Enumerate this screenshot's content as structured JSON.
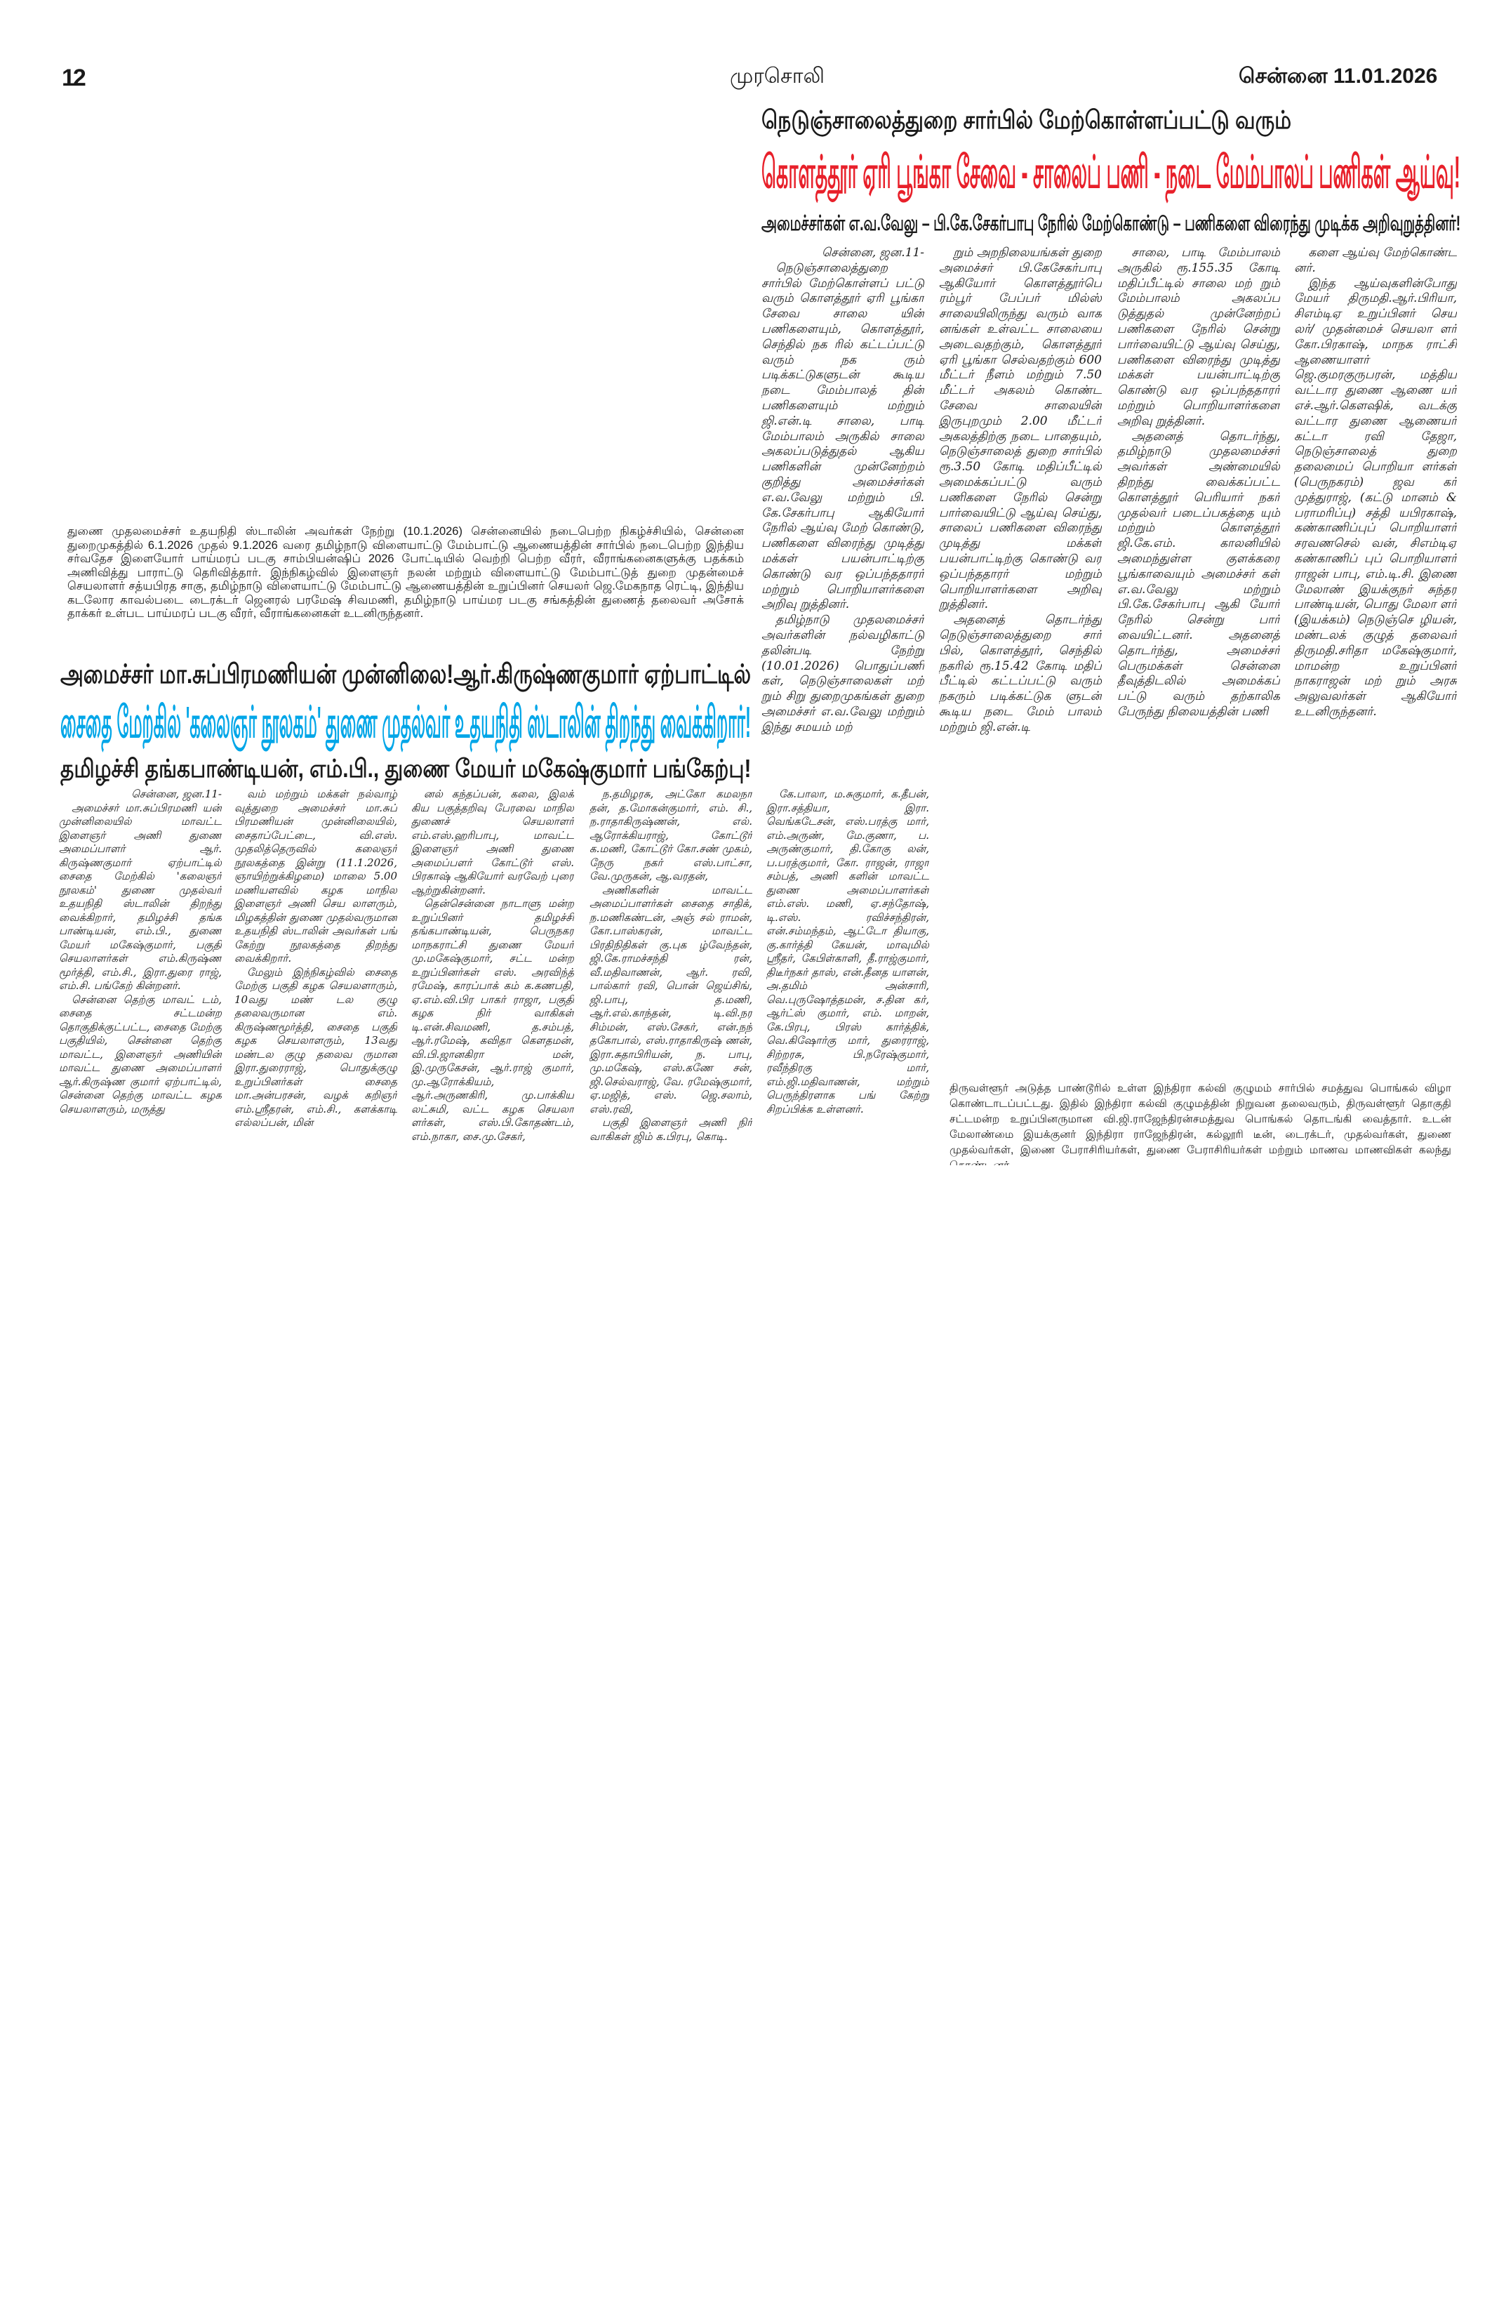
{
  "header": {
    "page_number": "12",
    "masthead": "முரசொலி",
    "dateline": "சென்னை 11.01.2026"
  },
  "article_roads": {
    "kicker": "நெடுஞ்சாலைத்துறை சார்பில் மேற்கொள்ளப்பட்டு வரும்",
    "headline": "கொளத்தூர் ஏரி பூங்கா சேவை - சாலைப் பணி - நடை மேம்பாலப் பணிகள் ஆய்வு!",
    "subhead": "அமைச்சர்கள் எ.வ.வேலு – பி.கே.சேகர்பாபு நேரில் மேற்கொண்டு – பணிகளை விரைந்து முடிக்க அறிவுறுத்தினர்!",
    "columns": [
      [
        "சென்னை, ஜன.11-",
        "நெடுஞ்சாலைத்துறை சார்பில் மேற்கொள்ளப் பட்டு வரும் கொளத்தூர் ஏரி பூங்கா சேவை சாலை யின் பணிகளையும், கொளத்தூர், செந்தில் நக ரில் கட்டப்பட்டு வரும் நக ரும் படிக்கட்டுகளுடன் கூடிய நடை மேம்பாலத் தின் பணிகளையும் மற்றும் ஜி.என்.டி சாலை, பாடி மேம்பாலம் அருகில் சாலை அகலப்படுத்துதல் ஆகிய பணிகளின் முன்னேற்றம் குறித்து அமைச்சர்கள் எ.வ.வேலு மற்றும் பி. கே.சேகர்பாபு ஆகியோர் நேரில் ஆய்வு மேற் கொண்டு, பணிகளை விரைந்து முடித்து மக்கள் பயன்பாட்டிற்கு கொண்டு வர ஒப்பந்ததாரர் மற்றும் பொறியாளர்களை அறிவு றுத்தினர்.",
        "தமிழ்நாடு முதலமைச்சர் அவர்களின் நல்வழிகாட்டு தலின்படி நேற்று (10.01.2026) பொதுப்பணி கள், நெடுஞ்சாலைகள் மற் றும் சிறு துறைமுகங்கள் துறை அமைச்சர் எ.வ.வேலு மற்றும் இந்து சமயம் மற்"
      ],
      [
        "றும் அறநிலையங்கள் துறை அமைச்சர் பி.கேசேகர்பாபு ஆகியோர் கொளத்தூர்பெ ரம்பூர் பேப்பர் மில்ஸ் சாலையிலிருந்து வரும் வாக னங்கள் உள்வட்ட சாலையை அடைவதற்கும், கொளத்தூர் ஏரி பூங்கா செல்வதற்கும் 600 மீட்டர் நீளம் மற்றும் 7.50 மீட்டர் அகலம் கொண்ட சேவை சாலையின் இருபுறமும் 2.00 மீட்டர் அகலத்திற்கு நடை பாதையும், நெடுஞ்சாலைத் துறை சார்பில் ரூ.3.50 கோடி மதிப்பீட்டில் அமைக்கப்பட்டு வரும் பணிகளை நேரில் சென்று பார்வையிட்டு ஆய்வு செய்து, சாலைப் பணிகளை விரைந்து முடித்து மக்கள் பயன்பாட்டிற்கு கொண்டு வர ஒப்பந்ததாரர் மற்றும் பொறியாளர்களை அறிவு றுத்தினர்.",
        "அதனைத் தொடர்ந்து நெடுஞ்சாலைத்துறை சார் பில், கொளத்தூர், செந்தில் நகரில் ரூ.15.42 கோடி மதிப் பீட்டில் கட்டப்பட்டு வரும் நகரும் படிக்கட்டுக ளுடன் கூடிய நடை மேம் பாலம் மற்றும் ஜி.என்.டி"
      ],
      [
        "சாலை, பாடி மேம்பாலம் அருகில் ரூ.155.35 கோடி மதிப்பீட்டில் சாலை மற் றும் மேம்பாலம் அகலப்ப டுத்துதல் முன்னேற்றப் பணிகளை நேரில் சென்று பார்வையிட்டு ஆய்வு செய்து, பணிகளை விரைந்து முடித்து மக்கள் பயன்பாட்டிற்கு கொண்டு வர ஒப்பந்ததாரர் மற்றும் பொறியாளர்களை அறிவு றுத்தினர்.",
        "அதனைத் தொடர்ந்து, தமிழ்நாடு முதலமைச்சர் அவர்கள் அண்மையில் திறந்து வைக்கப்பட்ட கொளத்தூர் பெரியார் நகர் முதல்வர் படைப்பகத்தை யும் மற்றும் கொளத்தூர் ஜி.கே.எம். காலனியில் அமைந்துள்ள குளக்கரை பூங்காவையும் அமைச்சர் கள் எ.வ.வேலு மற்றும் பி.கே.சேகர்பாபு ஆகி யோர் நேரில் சென்று பார் வையிட்டனர். அதனைத் தொடர்ந்து, அமைச்சர் பெருமக்கள் சென்னை தீவுத்திடலில் அமைக்கப் பட்டு வரும் தற்காலிக பேருந்து நிலையத்தின் பணி"
      ],
      [
        "களை ஆய்வு மேற்கொண்ட னர்.",
        "இந்த ஆய்வுகளின்போது மேயர் திருமதி.ஆர்.பிரியா, சிஎம்டிஏ உறுப்பினர் செய லர்/ முதன்மைச் செயலா ளர் கோ.பிரகாஷ், மாநக ராட்சி ஆணையாளர் ஜெ.குமரகுருபரன், மத்திய வட்டார துணை ஆணை யர் எச்.ஆர்.கௌஷிக், வடக்கு வட்டார துணை ஆணையர் கட்டா ரவி தேஜா, நெடுஞ்சாலைத் துறை தலைமைப் பொறியா ளர்கள் (பெருநகரம்) ஜவ கர் முத்துராஜ், (கட்டு மானம் & பராமரிப்பு) சத்தி யபிரகாஷ், கண்காணிப்புப் பொறியாளர் சரவணசெல் வன், சிஎம்டிஏ கண்காணிப் புப் பொறியாளர் ராஜன் பாபு, எம்.டி.சி. இணை மேலாண் இயக்குநர் சுந்தர பாண்டியன், பொது மேலா ளர் (இயக்கம்) நெடுஞ்செ ழியன், மண்டலக் குழுத் தலைவர் திருமதி.சரிதா மகேஷ்குமார், மாமன்ற உறுப்பினர் நாகராஜன் மற் றும் அரசு அலுவலர்கள் ஆகியோர் உடனிருந்தனர்."
      ]
    ]
  },
  "photo_caption_top": "துணை முதலமைச்சர் உதயநிதி ஸ்டாலின் அவர்கள் நேற்று (10.1.2026) சென்னையில் நடைபெற்ற நிகழ்ச்சியில், சென்னை துறைமுகத்தில் 6.1.2026 முதல் 9.1.2026 வரை தமிழ்நாடு விளையாட்டு மேம்பாட்டு ஆணையத்தின் சார்பில் நடைபெற்ற இந்திய சர்வதேச இளையோர் பாய்மரப் படகு சாம்பியன்ஷிப் 2026 போட்டியில் வெற்றி பெற்ற வீரர், வீராங்கனைகளுக்கு பதக்கம் அணிவித்து பாராட்டு தெரிவித்தார். இந்நிகழ்வில் இளைஞர் நலன் மற்றும் விளையாட்டு மேம்பாட்டுத் துறை முதன்மைச் செயலாளர் சத்யபிரத சாகு, தமிழ்நாடு விளையாட்டு மேம்பாட்டு ஆணையத்தின் உறுப்பினர் செயலர் ஜெ.மேகநாத ரெட்டி, இந்திய கடலோர காவல்படை டைரக்டர் ஜெனரல் பரமேஷ் சிவமணி, தமிழ்நாடு பாய்மர படகு சங்கத்தின் துணைத் தலைவர் அசோக் தாக்கர் உள்பட பாய்மரப் படகு வீரர், வீராங்கனைகள் உடனிருந்தனர்.",
  "article_library": {
    "kicker": "அமைச்சர் மா.சுப்பிரமணியன் முன்னிலை!ஆர்.கிருஷ்ணகுமார் ஏற்பாட்டில்",
    "headline": "சைதை மேற்கில் 'கலைஞர் நூலகம்' துணை முதல்வர் உதயநிதி ஸ்டாலின் திறந்து வைக்கிறார்!",
    "subhead": "தமிழச்சி தங்கபாண்டியன், எம்.பி., துணை மேயர் மகேஷ்குமார் பங்கேற்பு!",
    "columns": [
      [
        "சென்னை, ஜன.11-",
        "அமைச்சர் மா.சுப்பிரமணி யன் முன்னிலையில் மாவட்ட இளைஞர் அணி துணை அமைப்பாளர் ஆர். கிருஷ்ணகுமார் ஏற்பாட்டில் சைதை மேற்கில் 'கலைஞர் நூலகம்' துணை முதல்வர் உதயநிதி ஸ்டாலின் திறந்து வைக்கிறார், தமிழச்சி தங்க பாண்டியன், எம்.பி., துணை மேயர் மகேஷ்குமார், பகுதி செயலாளர்கள் எம்.கிருஷ்ண மூர்த்தி, எம்.சி., இரா.துரை ராஜ், எம்.சி. பங்கேற் கின்றனர்.",
        "சென்னை தெற்கு மாவட் டம், சைதை சட்டமன்ற தொகுதிக்குட்பட்ட, சைதை மேற்கு பகுதியில், சென்னை தெற்கு மாவட்ட, இளைஞர் அணியின் மாவட்ட துணை அமைப்பாளர் ஆர்.கிருஷ்ண குமார் ஏற்பாட்டில், சென்னை தெற்கு மாவட்ட கழக செயலாளரும், மருத்து"
      ],
      [
        "வம் மற்றும் மக்கள் நல்வாழ் வுத்துறை அமைச்சர் மா.சுப் பிரமணியன் முன்னிலையில், சைதாப்பேட்டை, வி.எஸ். முதலித்தெருவில் கலைஞர் நூலகத்தை இன்று (11.1.2026, ஞாயிற்றுக்கிழமை) மாலை 5.00 மணியளவில் கழக மாநில இளைஞர் அணி செய லாளரும், மிழகத்தின் துணை முதல்வருமான உதயநிதி ஸ்டாலின் அவர்கள் பங் கேற்று நூலகத்தை திறந்து வைக்கிறார்.",
        "மேலும் இந்நிகழ்வில் சைதை மேற்கு பகுதி கழக செயலளாரும், 10வது மண் டல குழு தலைவருமான எம். கிருஷ்ணமூர்த்தி, சைதை பகுதி கழக செயலாளரும், 13வது மண்டல குழு தலைவ ருமான இரா.துரைராஜ், பொதுக்குழு உறுப்பினர்கள் சைதை மா.அன்பரசன், வழக் கறிஞர் எம்.ஸ்ரீதரன், எம்.சி., களக்காடி எல்லப்பன், மின்"
      ],
      [
        "னல் கந்தப்பன், கலை, இலக் கிய பகுத்தறிவு பேரவை மாநில துணைச் செயலாளர் எம்.எஸ்.ஹரிபாபு, மாவட்ட இளைஞர் அணி துணை அமைப்பளர் கோட்டூர் எஸ். பிரகாஷ் ஆகியோர் வரவேற் புரை ஆற்றுகின்றனர்.",
        "தென்சென்னை நாடாளு மன்ற உறுப்பினர் தமிழச்சி தங்கபாண்டியன், பெருநகர மாநகராட்சி துணை மேயர் மு.மகேஷ்குமார், சட்ட மன்ற உறுப்பினர்கள் எஸ். அரவிந்த் ரமேஷ், காரப்பாக் கம் க.கணபதி, ஏ.எம்.வி.பிர பாகர் ராஜா, பகுதி கழக நிர் வாகிகள் டி.என்.சிவமணி, த.சம்பத், ஆர்.ரமேஷ், கவிதா கௌதமன், வி.பி.ஜானகிரா மன், இ.முருகேசன், ஆர்.ராஜ் குமார், மு.ஆரோக்கியம், ஆர்.அருணகிரி, மு.பாக்கிய லட்சுமி, வட்ட கழக செயலா ளர்கள், எஸ்.பி.கோதண்டம், எம்.நாகா, சை.மு.சேகர்,"
      ],
      [
        "ந.தமிழரசு, அட்கோ கமலநா தன், த.மோகன்குமார், எம். சி., ந.ராதாகிருஷ்ணன், எல். ஆரோக்கியராஜ், கோட்டூர் க.மணி, கோட்டூர் கோ.சண் முகம், நேரு நகர் எஸ்.பாட்சா, வே.முருகன், ஆ.வரதன்,",
        "அணிகளின் மாவட்ட அமைப்பாளர்கள் சைதை சாதிக், ந.மணிகண்டன், அஞ் சல் ராமன், கோ.பாஸ்கரன், மாவட்ட பிரதிநிதிகள் கு.புக ழ்வேந்தன், ஜி.கே.ராமச்சந்தி ரன், வீ.மதிவாணன், ஆர். ரவி, பால்கார் ரவி, பொன் ஜெய்சிங், ஜி.பாபு, த.மணி, ஆர்.எல்.காந்தன், டி.வி.நர சிம்மன், எஸ்.சேகர், என்.நந் தகோபால், எஸ்.ராதாகிருஷ் ணன், இரா.சுதாபிரியன், ந. பாபு, மு.மகேஷ், எஸ்.கணே சன், ஜி.செல்வராஜ், வே. ரமேஷ்குமார், ஏ.மஜித், எஸ். ஜெ.சலாம், எஸ்.ரவி,",
        "பகுதி இளைஞர் அணி நிர் வாகிகள் ஜிம் க.பிரபு, கொடி."
      ],
      [
        "கே.பாலா, ம.சுகுமார், க.தீபன், இரா.சத்தியா, இரா. வெங்கடேசன், எஸ்.பரத்கு மார், எம்.அருண், மே.குணா, ப. அருண்குமார், தி.கோகு லன், ப.பரத்குமார், கோ. ராஜன், ராஜா சம்பத், அணி களின் மாவட்ட துணை அமைப்பாளர்கள் எம்.எஸ். மணி, ஏ.சந்தோஷ், டி.எஸ். ரவிச்சந்திரன், என்.சம்மந்தம், ஆட்டோ தியாகு, கு.கார்த்தி கேயன், மாவுமில் ஸ்ரீதர், கேபிள்காளி, தீ.ராஜ்குமார், திடீர்நகர் தாஸ், என்.தீனத யாளன், அ.தமிம் அன்சாரி, வெ.புருஷோத்தமன், ச.தின கர், ஆர்ட்ஸ் குமார், எம். மாறன், கே.பிரபு, பிரஸ் கார்த்திக், வெ.கிஷோர்கு மார், துரைராஜ், சிற்றரசு, பி.நரேஷ்குமார், ரவீந்திரகு மார், எம்.ஜி.மதிவாணன், மற்றும் பெருந்திரளாக பங் கேற்று சிறப்பிக்க உள்ளனர்."
      ]
    ]
  },
  "photo_caption_bottom": "திருவள்ளூர் அடுத்த பாண்டூரில் உள்ள இந்திரா கல்வி குழுமம் சார்பில் சமத்துவ பொங்கல் விழா கொண்டாடப்பட்டது. இதில் இந்திரா கல்வி குழுமத்தின் நிறுவன தலைவரும், திருவள்ளூர் தொகுதி சட்டமன்ற உறுப்பினருமான வி.ஜி.ராஜேந்திரன்சமத்துவ பொங்கல் தொடங்கி வைத்தார். உடன் மேலாண்மை இயக்குனர் இந்திரா ராஜேந்திரன், கல்லூரி டீன், டைரக்டர், முதல்வர்கள், துணை முதல்வர்கள், இணை பேராசிரியர்கள், துணை பேராசிரியர்கள் மற்றும் மாணவ மாணவிகள் கலந்து கொண்டனர்",
  "colors": {
    "headline_red": "#e8202a",
    "headline_blue": "#00a6e8",
    "text": "#1a1a1a"
  }
}
